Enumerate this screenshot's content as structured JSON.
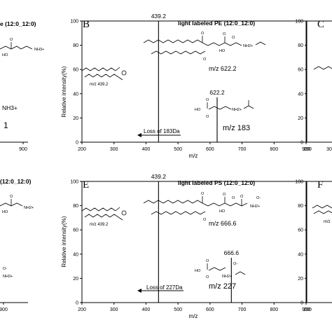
{
  "chart_data": [
    {
      "id": "A",
      "type": "bar",
      "panel_letter": "",
      "title": "e (12:0_12:0)",
      "xlabel": "",
      "ylabel": "",
      "x_ticks": [
        900
      ],
      "xlim": [
        200,
        900
      ],
      "ylim": [
        0,
        100
      ],
      "peaks": [],
      "structure_labels": [
        "NH3+",
        "1"
      ],
      "structure_text": [
        "O",
        "HO",
        "O",
        "NH3+"
      ]
    },
    {
      "id": "B",
      "type": "bar",
      "panel_letter": "B",
      "title": "light labeled PE (12:0_12:0)",
      "xlabel": "m/z",
      "ylabel": "Relative intensity(%)",
      "x_ticks": [
        200,
        300,
        400,
        500,
        600,
        700,
        800,
        900
      ],
      "y_ticks": [
        0,
        20,
        40,
        60,
        80,
        100
      ],
      "xlim": [
        200,
        900
      ],
      "ylim": [
        0,
        100
      ],
      "peaks": [
        {
          "mz": 439.2,
          "intensity": 100,
          "label": "439.2"
        },
        {
          "mz": 622.2,
          "intensity": 37,
          "label": "622.2"
        }
      ],
      "loss_label": "Loss of 183Da",
      "frag_label": "m/z 439.2",
      "precursor_label": "m/z 622.2",
      "headgroup_label": "m/z 183",
      "structure_text": [
        "O",
        "O",
        "O",
        "HO",
        "O",
        "NH2+",
        "O",
        "HO",
        "O",
        "NH2+"
      ]
    },
    {
      "id": "C",
      "type": "bar",
      "panel_letter": "C",
      "title": "",
      "xlabel": "",
      "ylabel": "",
      "x_ticks": [
        200,
        300
      ],
      "xlim": [
        200,
        900
      ],
      "ylim": [
        0,
        100
      ],
      "y_ticks": [
        0,
        20,
        40,
        60,
        80,
        100
      ],
      "peaks": []
    },
    {
      "id": "D",
      "type": "bar",
      "panel_letter": "",
      "title": "(12:0_12:0)",
      "xlabel": "",
      "ylabel": "",
      "x_ticks": [
        900
      ],
      "xlim": [
        200,
        900
      ],
      "ylim": [
        0,
        100
      ],
      "peaks": [],
      "structure_text": [
        "O",
        "HO",
        "NH2+",
        "O-",
        "NH3+"
      ]
    },
    {
      "id": "E",
      "type": "bar",
      "panel_letter": "E",
      "title": "light labeled PS (12:0_12:0)",
      "xlabel": "m/z",
      "ylabel": "Relative intensity(%)",
      "x_ticks": [
        200,
        300,
        400,
        500,
        600,
        700,
        800,
        900
      ],
      "y_ticks": [
        0,
        20,
        40,
        60,
        80,
        100
      ],
      "xlim": [
        200,
        900
      ],
      "ylim": [
        0,
        100
      ],
      "peaks": [
        {
          "mz": 439.2,
          "intensity": 100,
          "label": "439.2"
        },
        {
          "mz": 666.6,
          "intensity": 37,
          "label": "666.6"
        }
      ],
      "loss_label": "Loss of 227Da",
      "frag_label": "m/z 439.2",
      "precursor_label": "m/z 666.6",
      "headgroup_label": "m/z 227",
      "structure_text": [
        "O",
        "O",
        "O",
        "HO",
        "O",
        "O",
        "NH2+",
        "O-",
        "O",
        "HO",
        "O",
        "NH2+",
        "O-"
      ]
    },
    {
      "id": "F",
      "type": "bar",
      "panel_letter": "F",
      "title": "",
      "xlabel": "",
      "ylabel": "",
      "x_ticks": [
        200
      ],
      "xlim": [
        200,
        900
      ],
      "ylim": [
        0,
        100
      ],
      "y_ticks": [
        0,
        20,
        40,
        60,
        80,
        100
      ],
      "peaks": [],
      "frag_label": "m/z"
    }
  ]
}
